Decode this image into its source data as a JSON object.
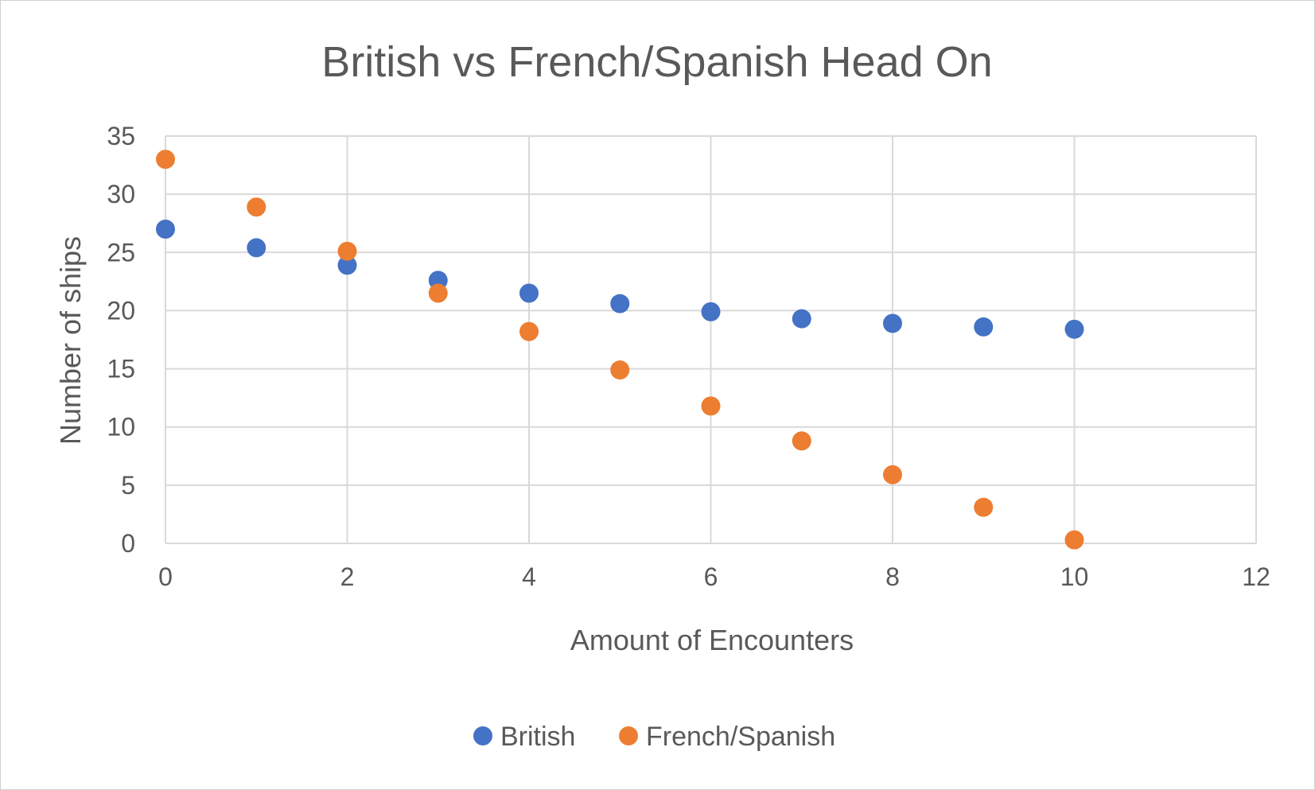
{
  "chart_data": {
    "type": "scatter",
    "title": "British vs French/Spanish Head On",
    "xlabel": "Amount of Encounters",
    "ylabel": "Number of ships",
    "xlim": [
      0,
      12
    ],
    "ylim": [
      0,
      35
    ],
    "x_ticks": [
      "0",
      "2",
      "4",
      "6",
      "8",
      "10",
      "12"
    ],
    "y_ticks": [
      "0",
      "5",
      "10",
      "15",
      "20",
      "25",
      "30",
      "35"
    ],
    "grid": true,
    "legend_position": "bottom",
    "series": [
      {
        "name": "British",
        "color": "#4472C4",
        "x": [
          0,
          1,
          2,
          3,
          4,
          5,
          6,
          7,
          8,
          9,
          10
        ],
        "y": [
          27.0,
          25.4,
          23.9,
          22.6,
          21.5,
          20.6,
          19.9,
          19.3,
          18.9,
          18.6,
          18.4
        ]
      },
      {
        "name": "French/Spanish",
        "color": "#ED7D31",
        "x": [
          0,
          1,
          2,
          3,
          4,
          5,
          6,
          7,
          8,
          9,
          10
        ],
        "y": [
          33.0,
          28.9,
          25.1,
          21.5,
          18.2,
          14.9,
          11.8,
          8.8,
          5.9,
          3.1,
          0.3
        ]
      }
    ]
  }
}
